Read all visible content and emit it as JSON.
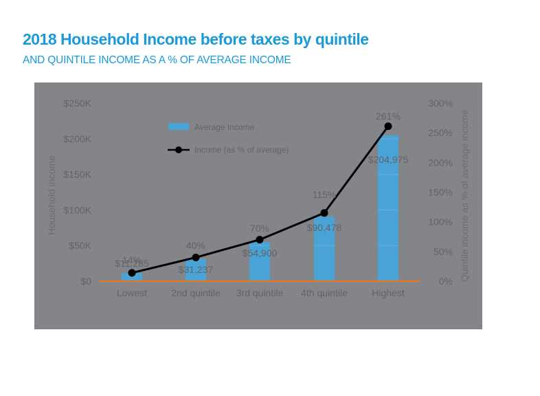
{
  "header": {
    "title": "2018 Household Income before taxes by quintile",
    "subtitle": "AND QUINTILE INCOME AS A % OF AVERAGE INCOME"
  },
  "colors": {
    "title": "#1a9ad6",
    "panel": "#838589",
    "bar": "#4aa3d6",
    "line": "#000000",
    "baseline": "#e07b2c",
    "text": "#616366"
  },
  "legend": {
    "bar_label": "Average Income",
    "line_label": "Income (as % of average)"
  },
  "axes": {
    "left_title": "Household income",
    "right_title": "Quintile income as % of average income",
    "left_ticks": [
      "$0",
      "$50K",
      "$100K",
      "$150K",
      "$200K",
      "$250K"
    ],
    "right_ticks": [
      "0%",
      "50%",
      "100%",
      "150%",
      "200%",
      "250%",
      "300%"
    ]
  },
  "chart_data": {
    "type": "bar",
    "title": "2018 Household Income before taxes by quintile",
    "subtitle": "AND QUINTILE INCOME AS A % OF AVERAGE INCOME",
    "categories": [
      "Lowest",
      "2nd quintile",
      "3rd quintile",
      "4th quintile",
      "Highest"
    ],
    "series": [
      {
        "name": "Average Income",
        "type": "bar",
        "axis": "left",
        "values": [
          11285,
          31237,
          54900,
          90478,
          204975
        ],
        "labels": [
          "$11,285",
          "$31,237",
          "$54,900",
          "$90,478",
          "$204,975"
        ]
      },
      {
        "name": "Income (as % of average)",
        "type": "line",
        "axis": "right",
        "values": [
          14,
          40,
          70,
          115,
          261
        ],
        "labels": [
          "14%",
          "40%",
          "70%",
          "115%",
          "261%"
        ]
      }
    ],
    "xlabel": "",
    "ylabel": "Household income",
    "y2label": "Quintile income as % of average income",
    "ylim": [
      0,
      250000
    ],
    "y2lim": [
      0,
      300
    ],
    "grid": true,
    "legend_position": "top-left inside"
  }
}
